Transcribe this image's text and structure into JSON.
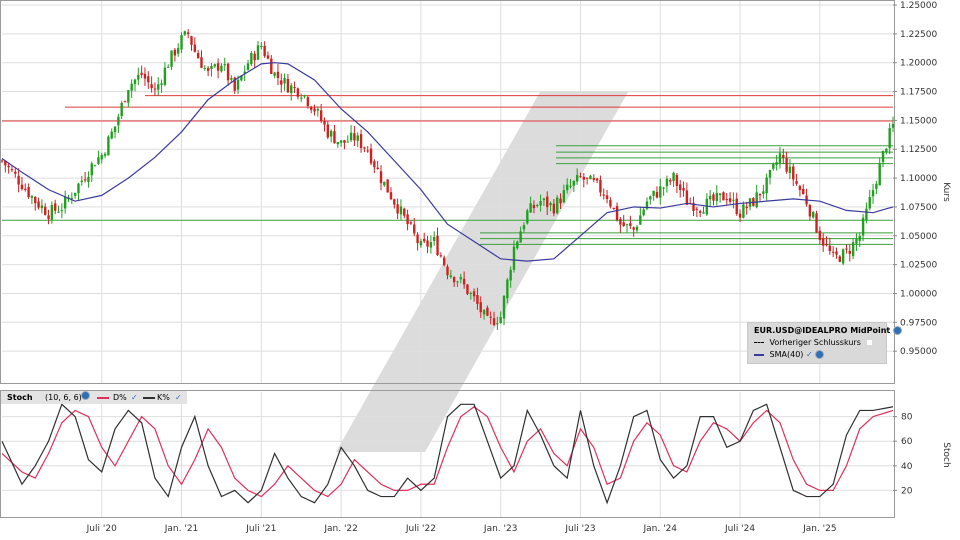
{
  "chart_data": [
    {
      "type": "candlestick",
      "ylabel": "Kurs",
      "ylim": [
        0.925,
        1.25
      ],
      "y_ticks": [
        "1.25000",
        "1.22500",
        "1.20000",
        "1.17500",
        "1.15000",
        "1.12500",
        "1.10000",
        "1.07500",
        "1.05000",
        "1.02500",
        "1.00000",
        "0.97500",
        "0.95000"
      ],
      "y_tick_values": [
        1.25,
        1.225,
        1.2,
        1.175,
        1.15,
        1.125,
        1.1,
        1.075,
        1.05,
        1.025,
        1.0,
        0.975,
        0.95
      ],
      "x_ticks": [
        "Juli '20",
        "Jan. '21",
        "Juli '21",
        "Jan. '22",
        "Juli '22",
        "Jan. '23",
        "Juli '23",
        "Jan. '24",
        "Juli '24",
        "Jan. '25"
      ],
      "x_tick_months": [
        12,
        18,
        24,
        30,
        36,
        42,
        48,
        54,
        60,
        66
      ],
      "x_range_months": [
        4.5,
        71.5
      ],
      "close_path": [
        [
          4.5,
          1.115
        ],
        [
          6,
          1.095
        ],
        [
          7,
          1.08
        ],
        [
          8,
          1.07
        ],
        [
          9,
          1.075
        ],
        [
          10,
          1.09
        ],
        [
          11.5,
          1.115
        ],
        [
          12,
          1.12
        ],
        [
          13,
          1.145
        ],
        [
          14,
          1.18
        ],
        [
          15,
          1.19
        ],
        [
          16,
          1.175
        ],
        [
          17,
          1.2
        ],
        [
          18,
          1.22
        ],
        [
          18.5,
          1.225
        ],
        [
          19,
          1.21
        ],
        [
          20,
          1.19
        ],
        [
          21,
          1.2
        ],
        [
          22,
          1.175
        ],
        [
          23,
          1.2
        ],
        [
          24,
          1.215
        ],
        [
          25,
          1.19
        ],
        [
          26,
          1.18
        ],
        [
          27,
          1.175
        ],
        [
          28,
          1.16
        ],
        [
          29,
          1.14
        ],
        [
          30,
          1.13
        ],
        [
          31,
          1.135
        ],
        [
          32,
          1.125
        ],
        [
          33,
          1.1
        ],
        [
          34,
          1.08
        ],
        [
          35,
          1.06
        ],
        [
          36,
          1.04
        ],
        [
          37,
          1.045
        ],
        [
          38,
          1.02
        ],
        [
          39,
          1.01
        ],
        [
          40,
          0.995
        ],
        [
          41,
          0.975
        ],
        [
          42,
          0.98
        ],
        [
          43,
          1.04
        ],
        [
          44,
          1.07
        ],
        [
          45,
          1.08
        ],
        [
          46,
          1.075
        ],
        [
          47,
          1.09
        ],
        [
          48,
          1.1
        ],
        [
          49,
          1.095
        ],
        [
          50,
          1.085
        ],
        [
          51,
          1.06
        ],
        [
          52,
          1.055
        ],
        [
          53,
          1.08
        ],
        [
          54,
          1.09
        ],
        [
          55,
          1.1
        ],
        [
          56,
          1.08
        ],
        [
          57,
          1.075
        ],
        [
          58,
          1.08
        ],
        [
          59,
          1.085
        ],
        [
          60,
          1.07
        ],
        [
          61,
          1.08
        ],
        [
          62,
          1.095
        ],
        [
          63,
          1.12
        ],
        [
          64,
          1.1
        ],
        [
          65,
          1.08
        ],
        [
          66,
          1.05
        ],
        [
          67,
          1.03
        ],
        [
          68,
          1.035
        ],
        [
          69,
          1.05
        ],
        [
          70,
          1.09
        ],
        [
          71,
          1.13
        ],
        [
          71.5,
          1.145
        ]
      ],
      "series": [
        {
          "name": "SMA(40)",
          "color": "#3a3a9f",
          "points": [
            [
              4.5,
              1.117
            ],
            [
              6,
              1.105
            ],
            [
              8,
              1.09
            ],
            [
              10,
              1.08
            ],
            [
              12,
              1.085
            ],
            [
              14,
              1.1
            ],
            [
              16,
              1.118
            ],
            [
              18,
              1.14
            ],
            [
              20,
              1.168
            ],
            [
              22,
              1.185
            ],
            [
              24,
              1.199
            ],
            [
              25,
              1.2
            ],
            [
              26,
              1.199
            ],
            [
              28,
              1.185
            ],
            [
              30,
              1.16
            ],
            [
              32,
              1.14
            ],
            [
              34,
              1.115
            ],
            [
              36,
              1.09
            ],
            [
              38,
              1.06
            ],
            [
              40,
              1.045
            ],
            [
              42,
              1.03
            ],
            [
              44,
              1.028
            ],
            [
              46,
              1.03
            ],
            [
              48,
              1.05
            ],
            [
              50,
              1.07
            ],
            [
              52,
              1.075
            ],
            [
              54,
              1.074
            ],
            [
              56,
              1.078
            ],
            [
              58,
              1.075
            ],
            [
              60,
              1.078
            ],
            [
              62,
              1.08
            ],
            [
              64,
              1.082
            ],
            [
              66,
              1.08
            ],
            [
              68,
              1.072
            ],
            [
              70,
              1.07
            ],
            [
              71.5,
              1.075
            ]
          ]
        }
      ],
      "horizontal_lines": [
        {
          "value": 1.1715,
          "color": "#e03a3a"
        },
        {
          "value": 1.1615,
          "color": "#e03a3a"
        },
        {
          "value": 1.1495,
          "color": "#e03a3a"
        },
        {
          "value": 1.128,
          "color": "#3a9f3a"
        },
        {
          "value": 1.1225,
          "color": "#3a9f3a"
        },
        {
          "value": 1.1175,
          "color": "#3a9f3a"
        },
        {
          "value": 1.1125,
          "color": "#3a9f3a"
        },
        {
          "value": 1.0635,
          "color": "#3a9f3a"
        },
        {
          "value": 1.0525,
          "color": "#3a9f3a"
        },
        {
          "value": 1.0475,
          "color": "#3a9f3a"
        },
        {
          "value": 1.0425,
          "color": "#3a9f3a"
        }
      ],
      "legend": {
        "symbol": "EUR.USD@IDEALPRO MidPoint",
        "prev_close": "Vorheriger Schlusskurs",
        "sma": "SMA(40)"
      },
      "colors": {
        "up": "#20a020",
        "down": "#d02020",
        "grid": "#dddddd"
      }
    },
    {
      "type": "line",
      "ylabel": "Stoch",
      "ylim": [
        0,
        100
      ],
      "y_ticks": [
        "80",
        "60",
        "40",
        "20"
      ],
      "y_tick_values": [
        80,
        60,
        40,
        20
      ],
      "series": [
        {
          "name": "D%",
          "color": "#e0305a",
          "points": [
            [
              4.5,
              50
            ],
            [
              6,
              35
            ],
            [
              7,
              30
            ],
            [
              8,
              50
            ],
            [
              9,
              75
            ],
            [
              10,
              85
            ],
            [
              11,
              80
            ],
            [
              12,
              55
            ],
            [
              13,
              40
            ],
            [
              14,
              60
            ],
            [
              15,
              80
            ],
            [
              16,
              70
            ],
            [
              17,
              40
            ],
            [
              18,
              25
            ],
            [
              19,
              45
            ],
            [
              20,
              70
            ],
            [
              21,
              55
            ],
            [
              22,
              30
            ],
            [
              23,
              20
            ],
            [
              24,
              15
            ],
            [
              25,
              25
            ],
            [
              26,
              40
            ],
            [
              27,
              30
            ],
            [
              28,
              20
            ],
            [
              29,
              15
            ],
            [
              30,
              25
            ],
            [
              31,
              45
            ],
            [
              32,
              35
            ],
            [
              33,
              25
            ],
            [
              34,
              20
            ],
            [
              35,
              20
            ],
            [
              36,
              25
            ],
            [
              37,
              25
            ],
            [
              38,
              55
            ],
            [
              39,
              80
            ],
            [
              40,
              88
            ],
            [
              41,
              80
            ],
            [
              42,
              55
            ],
            [
              43,
              35
            ],
            [
              44,
              60
            ],
            [
              45,
              70
            ],
            [
              46,
              50
            ],
            [
              47,
              40
            ],
            [
              48,
              70
            ],
            [
              49,
              55
            ],
            [
              50,
              25
            ],
            [
              51,
              30
            ],
            [
              52,
              60
            ],
            [
              53,
              75
            ],
            [
              54,
              65
            ],
            [
              55,
              40
            ],
            [
              56,
              35
            ],
            [
              57,
              60
            ],
            [
              58,
              75
            ],
            [
              59,
              70
            ],
            [
              60,
              60
            ],
            [
              61,
              75
            ],
            [
              62,
              85
            ],
            [
              63,
              75
            ],
            [
              64,
              45
            ],
            [
              65,
              25
            ],
            [
              66,
              20
            ],
            [
              67,
              20
            ],
            [
              68,
              40
            ],
            [
              69,
              70
            ],
            [
              70,
              80
            ],
            [
              71.5,
              85
            ]
          ]
        },
        {
          "name": "K%",
          "color": "#303030",
          "points": [
            [
              4.5,
              60
            ],
            [
              6,
              25
            ],
            [
              7,
              40
            ],
            [
              8,
              60
            ],
            [
              9,
              90
            ],
            [
              10,
              80
            ],
            [
              11,
              45
            ],
            [
              12,
              35
            ],
            [
              13,
              70
            ],
            [
              14,
              85
            ],
            [
              15,
              75
            ],
            [
              16,
              30
            ],
            [
              17,
              15
            ],
            [
              18,
              55
            ],
            [
              19,
              80
            ],
            [
              20,
              40
            ],
            [
              21,
              15
            ],
            [
              22,
              20
            ],
            [
              23,
              10
            ],
            [
              24,
              20
            ],
            [
              25,
              50
            ],
            [
              26,
              30
            ],
            [
              27,
              15
            ],
            [
              28,
              10
            ],
            [
              29,
              25
            ],
            [
              30,
              55
            ],
            [
              31,
              40
            ],
            [
              32,
              20
            ],
            [
              33,
              15
            ],
            [
              34,
              15
            ],
            [
              35,
              30
            ],
            [
              36,
              20
            ],
            [
              37,
              30
            ],
            [
              38,
              80
            ],
            [
              39,
              90
            ],
            [
              40,
              90
            ],
            [
              41,
              60
            ],
            [
              42,
              30
            ],
            [
              43,
              40
            ],
            [
              44,
              85
            ],
            [
              45,
              65
            ],
            [
              46,
              40
            ],
            [
              47,
              30
            ],
            [
              48,
              85
            ],
            [
              49,
              40
            ],
            [
              50,
              10
            ],
            [
              51,
              40
            ],
            [
              52,
              80
            ],
            [
              53,
              85
            ],
            [
              54,
              45
            ],
            [
              55,
              30
            ],
            [
              56,
              40
            ],
            [
              57,
              80
            ],
            [
              58,
              80
            ],
            [
              59,
              55
            ],
            [
              60,
              60
            ],
            [
              61,
              85
            ],
            [
              62,
              90
            ],
            [
              63,
              55
            ],
            [
              64,
              20
            ],
            [
              65,
              15
            ],
            [
              66,
              15
            ],
            [
              67,
              25
            ],
            [
              68,
              65
            ],
            [
              69,
              85
            ],
            [
              70,
              85
            ],
            [
              71.5,
              88
            ]
          ]
        }
      ],
      "header": {
        "name": "Stoch",
        "params": "(10, 6, 6)",
        "d_label": "D%",
        "k_label": "K%"
      }
    }
  ]
}
